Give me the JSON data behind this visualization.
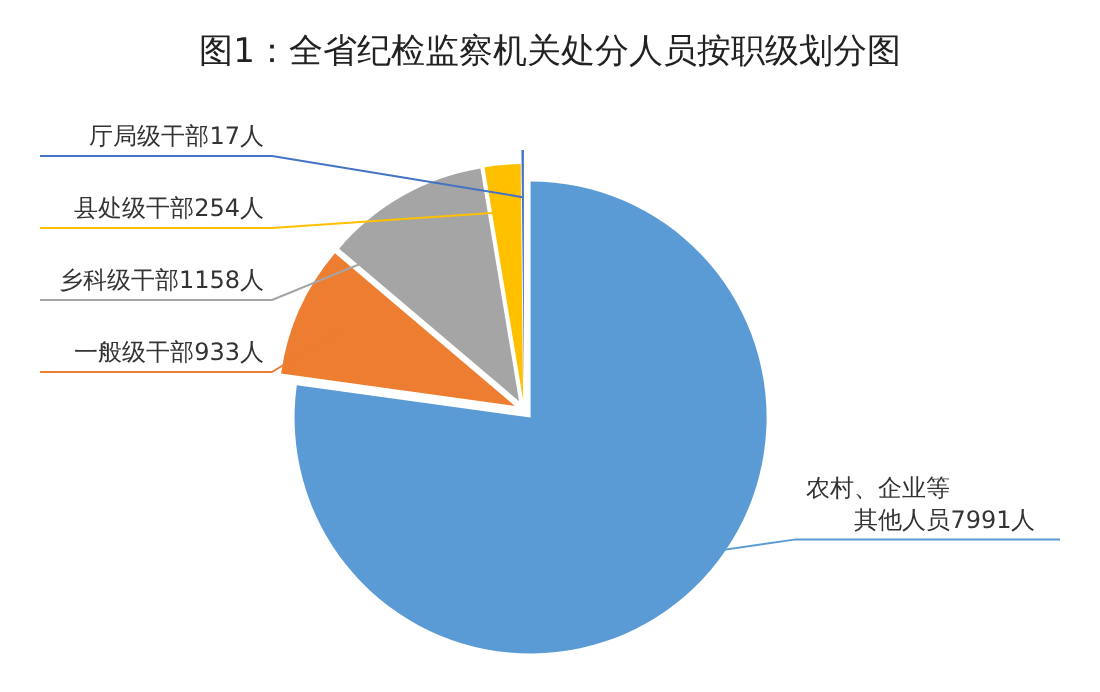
{
  "chart_data": {
    "type": "pie",
    "title": "图1：全省纪检监察机关处分人员按职级划分图",
    "categories": [
      "农村、企业等其他人员",
      "一般级干部",
      "乡科级干部",
      "县处级干部",
      "厅局级干部"
    ],
    "values": [
      7991,
      933,
      1158,
      254,
      17
    ],
    "value_labels": [
      "7991人",
      "933人",
      "1158人",
      "254人",
      "17人"
    ],
    "colors": [
      "#5b9bd5",
      "#ed7d31",
      "#a5a5a5",
      "#ffc000",
      "#4472c4"
    ]
  }
}
